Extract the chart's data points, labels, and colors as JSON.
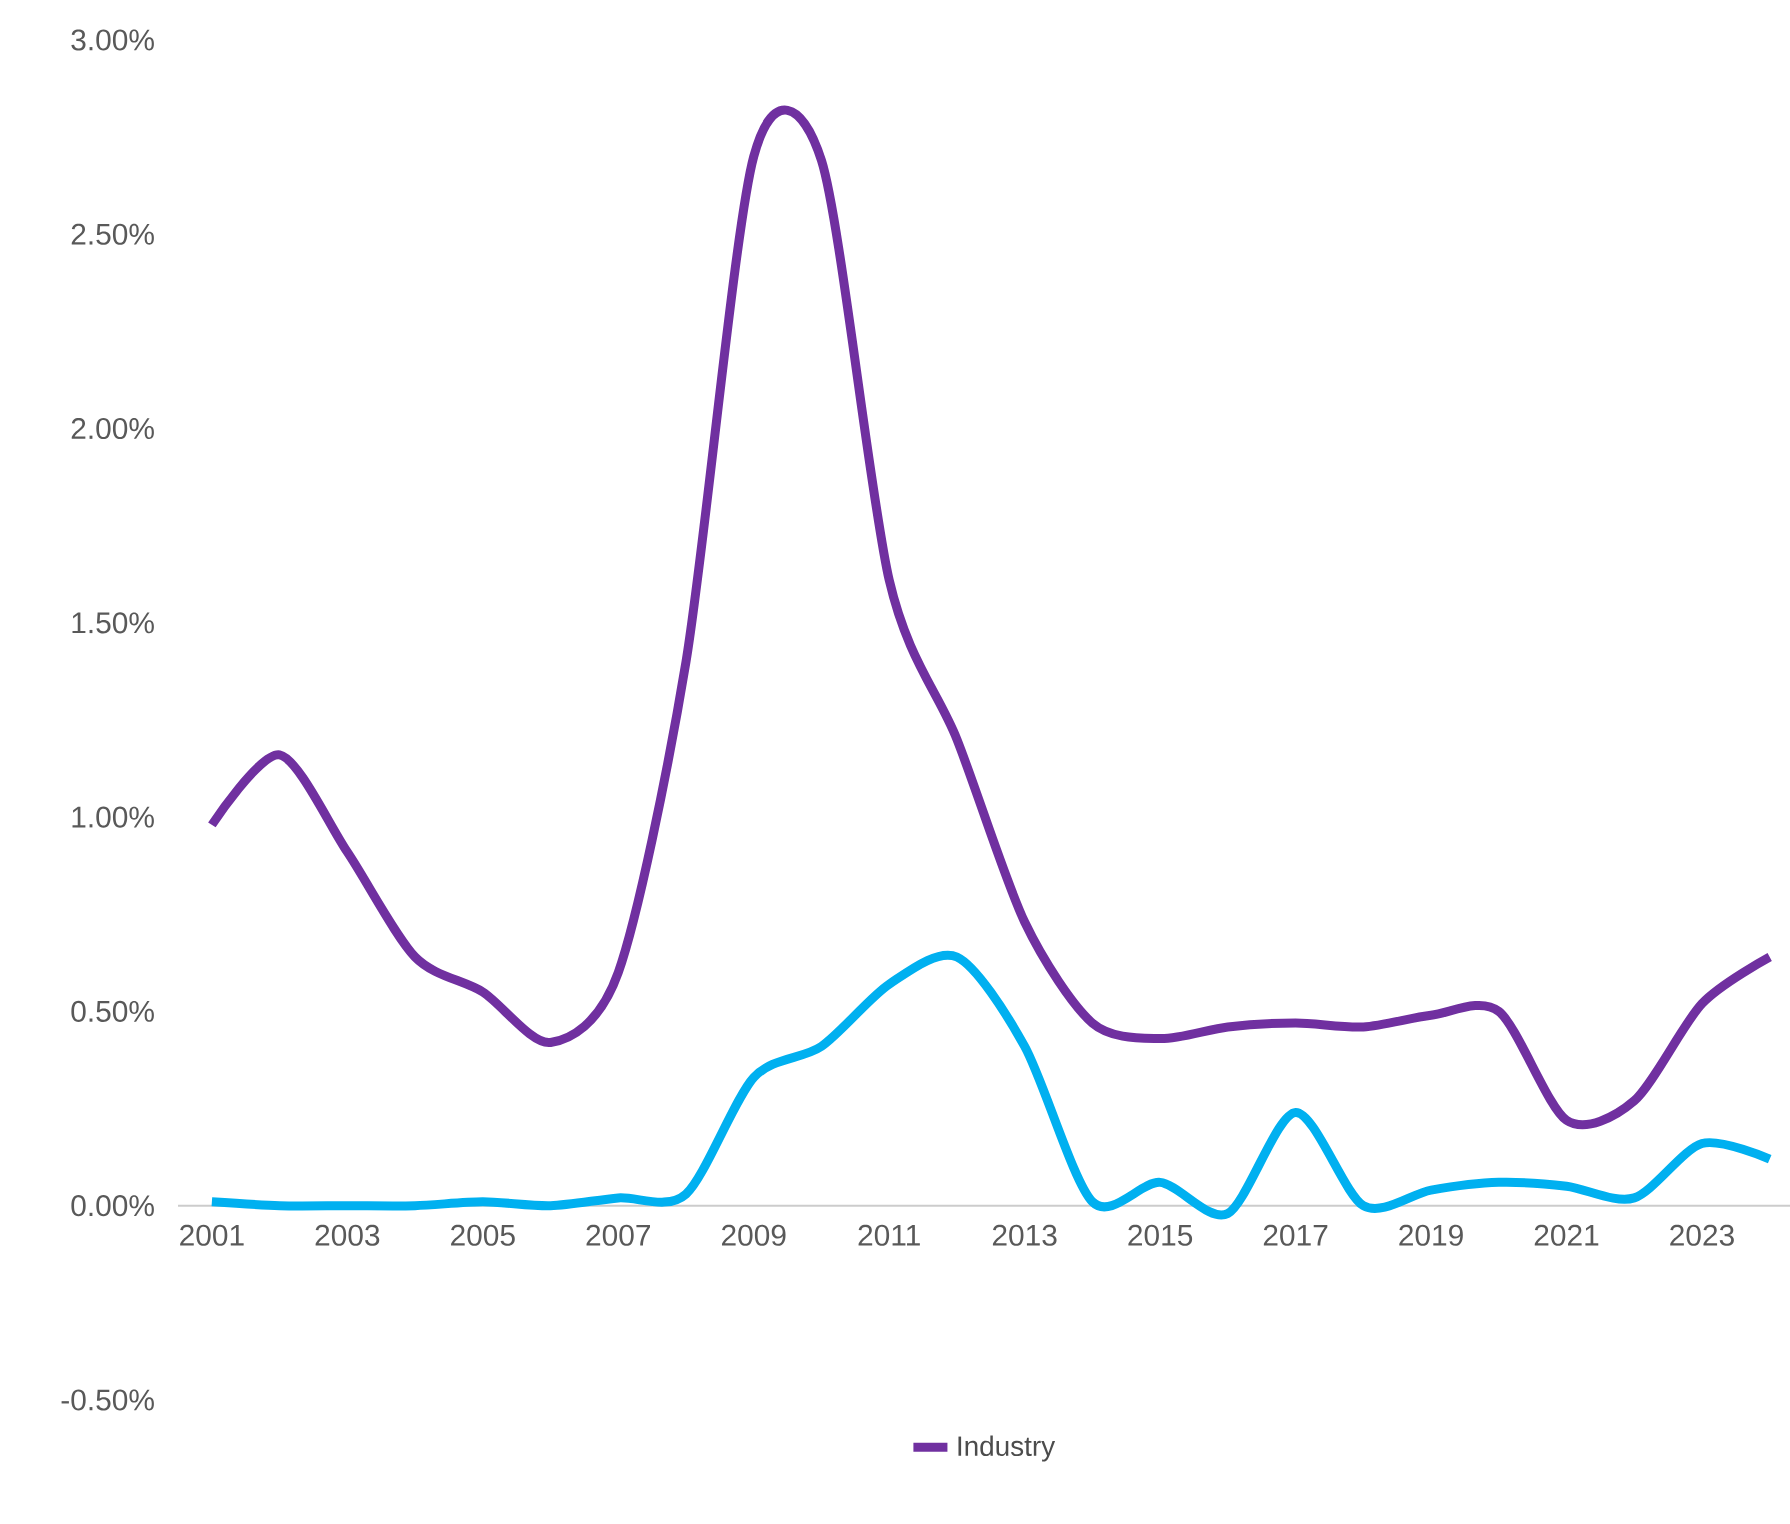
{
  "chart_data": {
    "type": "line",
    "categories": [
      "2001",
      null,
      "2003",
      null,
      "2005",
      null,
      "2007",
      null,
      "2009",
      null,
      "2011",
      null,
      "2013",
      null,
      "2015",
      null,
      "2017",
      null,
      "2019",
      null,
      "2021",
      null,
      "2023",
      null
    ],
    "series": [
      {
        "color": "#00b0f0",
        "values": [
          0.01,
          0.0,
          0.0,
          0.0,
          0.01,
          0.0,
          0.02,
          0.03,
          0.33,
          0.41,
          0.57,
          0.64,
          0.41,
          0.01,
          0.06,
          -0.02,
          0.24,
          0.0,
          0.04,
          0.06,
          0.05,
          0.02,
          0.16,
          0.12
        ]
      },
      {
        "name": "Industry",
        "color": "#7030a0",
        "values": [
          0.98,
          1.16,
          0.91,
          0.64,
          0.55,
          0.42,
          0.6,
          1.4,
          2.7,
          2.69,
          1.61,
          1.2,
          0.73,
          0.47,
          0.43,
          0.46,
          0.47,
          0.46,
          0.49,
          0.5,
          0.22,
          0.27,
          0.52,
          0.64
        ]
      }
    ],
    "ylim": [
      -0.5,
      3
    ],
    "yticks": [
      {
        "value": -0.5,
        "label": "-0.50%"
      },
      {
        "value": 0,
        "label": "0.00%"
      },
      {
        "value": 0.5,
        "label": "0.50%"
      },
      {
        "value": 1,
        "label": "1.00%"
      },
      {
        "value": 1.5,
        "label": "1.50%"
      },
      {
        "value": 2,
        "label": "2.00%"
      },
      {
        "value": 2.5,
        "label": "2.50%"
      },
      {
        "value": 3,
        "label": "3.00%"
      }
    ],
    "grid": false,
    "legend": "bottom",
    "marker": "none",
    "line_style": "solid"
  }
}
